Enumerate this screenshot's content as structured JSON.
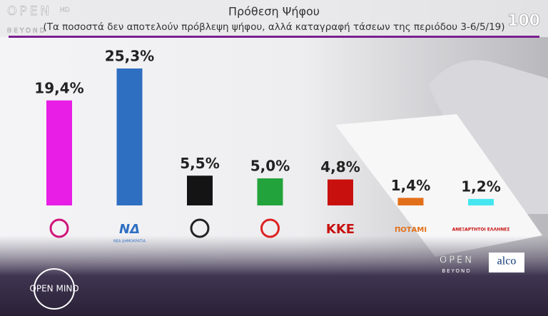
{
  "chart_data": {
    "type": "bar",
    "title": "Πρόθεση Ψήφου",
    "subtitle": "(Τα ποσοστά δεν αποτελούν πρόβλεψη ψήφου, αλλά καταγραφή τάσεων της περιόδου 3-6/5/19)",
    "categories": [
      null,
      "ΝΔ",
      null,
      null,
      "ΚΚΕ",
      "ΠΟΤΑΜΙ",
      "ΑΝΕΞΑΡΤΗΤΟΙ ΕΛΛΗΝΕΣ"
    ],
    "category_subtitles": [
      null,
      "ΝΕΑ ΔΗΜΟΚΡΑΤΙΑ",
      null,
      null,
      null,
      null,
      null
    ],
    "values": [
      19.4,
      25.3,
      5.5,
      5.0,
      4.8,
      1.4,
      1.2
    ],
    "value_labels": [
      "19,4%",
      "25,3%",
      "5,5%",
      "5,0%",
      "4,8%",
      "1,4%",
      "1,2%"
    ],
    "colors": [
      "#e81ee6",
      "#2f6fc2",
      "#141414",
      "#23a33c",
      "#c8110f",
      "#e2701a",
      "#45e6ef"
    ]
  },
  "branding": {
    "channel": "OPEN",
    "channel_hd": "HD",
    "channel_sub": "BEYOND",
    "show_badge": "100",
    "show": "OPEN MIND",
    "footer_channel": "OPEN",
    "footer_channel_sub": "BEYOND",
    "pollster": "alco"
  }
}
